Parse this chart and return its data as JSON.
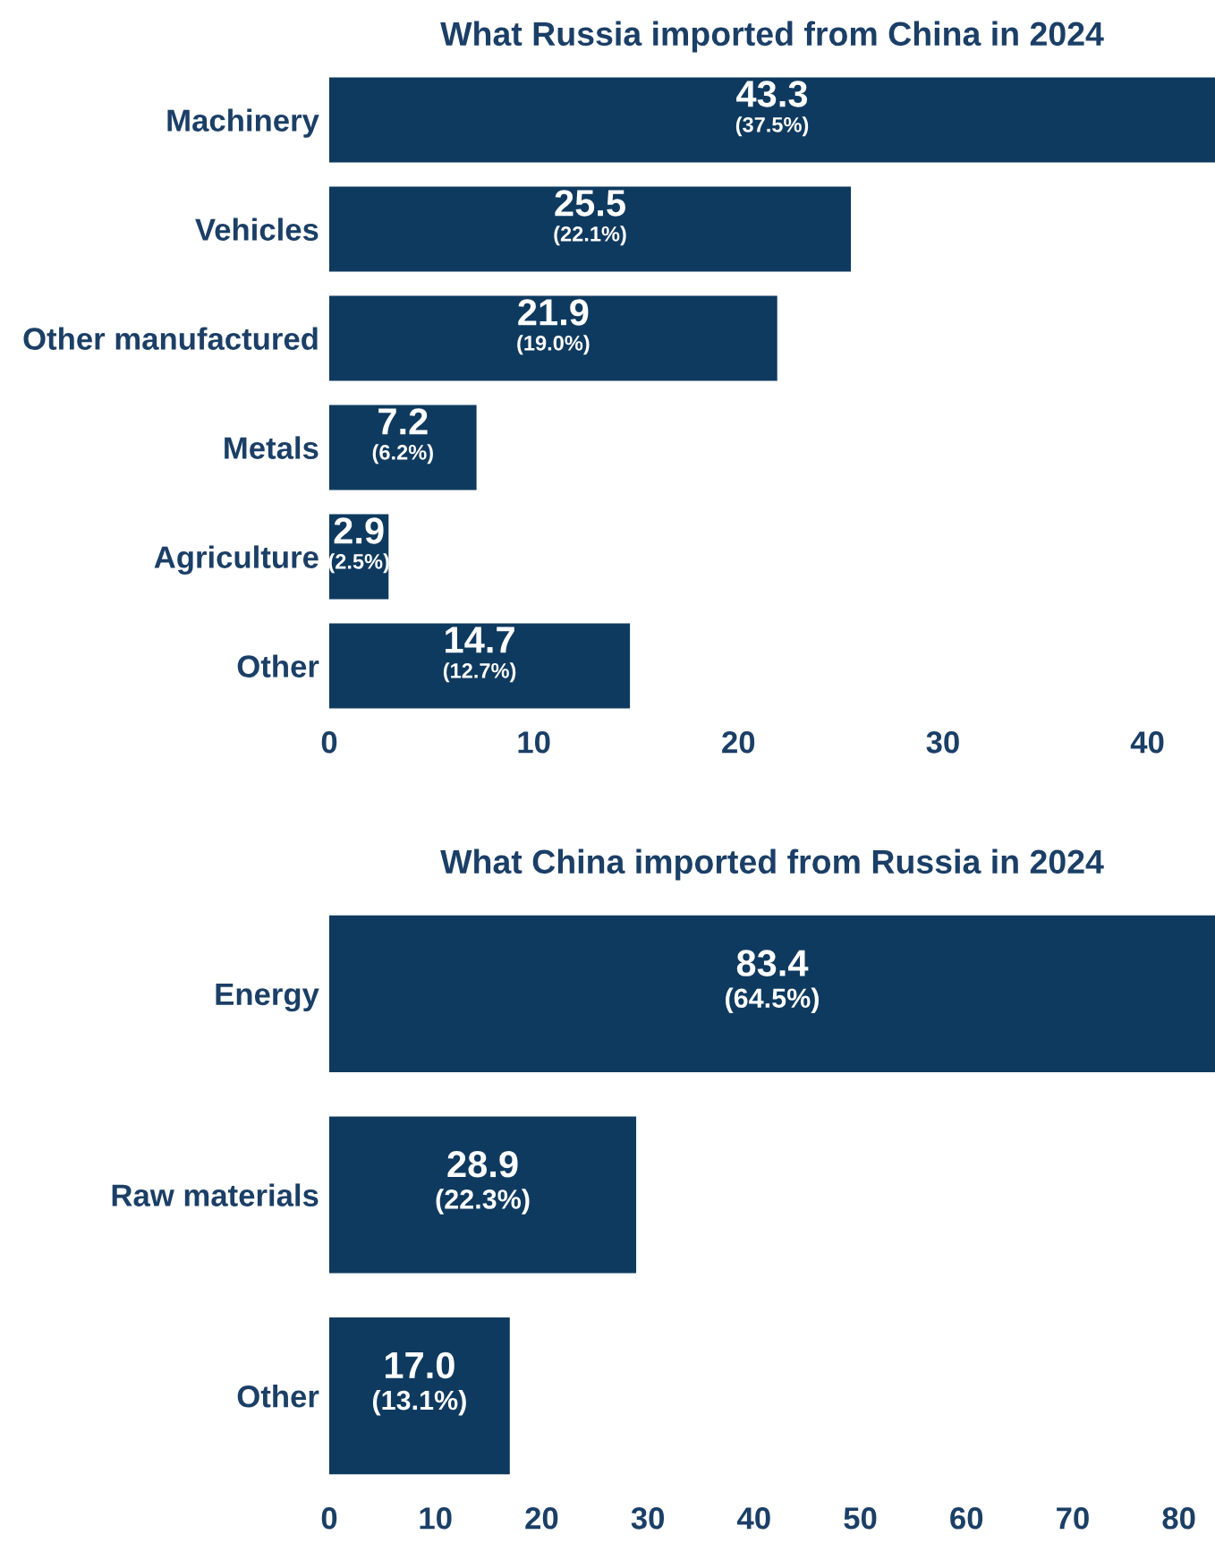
{
  "chart_data": [
    {
      "type": "bar",
      "orientation": "horizontal",
      "title": "What Russia imported from China in 2024",
      "categories": [
        "Machinery",
        "Vehicles",
        "Other manufactured",
        "Metals",
        "Agriculture",
        "Other"
      ],
      "values": [
        43.3,
        25.5,
        21.9,
        7.2,
        2.9,
        14.7
      ],
      "color": "#0f3a5f",
      "value_labels": [
        "43.3\n(37.5%)",
        "25.5\n(22.1%)",
        "21.9\n(19.0%)",
        "7.2\n(6.2%)",
        "2.9\n(2.5%)",
        "14.7\n(12.7%)"
      ],
      "xlim": [
        0,
        43.3
      ],
      "xticks": [
        0,
        10,
        20,
        30,
        40
      ],
      "grid": false,
      "legend": false
    },
    {
      "type": "bar",
      "orientation": "horizontal",
      "title": "What China imported from Russia in 2024",
      "categories": [
        "Energy",
        "Raw materials",
        "Other"
      ],
      "values": [
        83.4,
        28.9,
        17.0
      ],
      "color": "#0f3a5f",
      "value_labels": [
        "83.4\n(64.5%)",
        "28.9\n(22.3%)",
        "17.0\n(13.1%)"
      ],
      "xlim": [
        0,
        83.4
      ],
      "xticks": [
        0,
        10,
        20,
        30,
        40,
        50,
        60,
        70,
        80
      ],
      "grid": false,
      "legend": false
    }
  ]
}
